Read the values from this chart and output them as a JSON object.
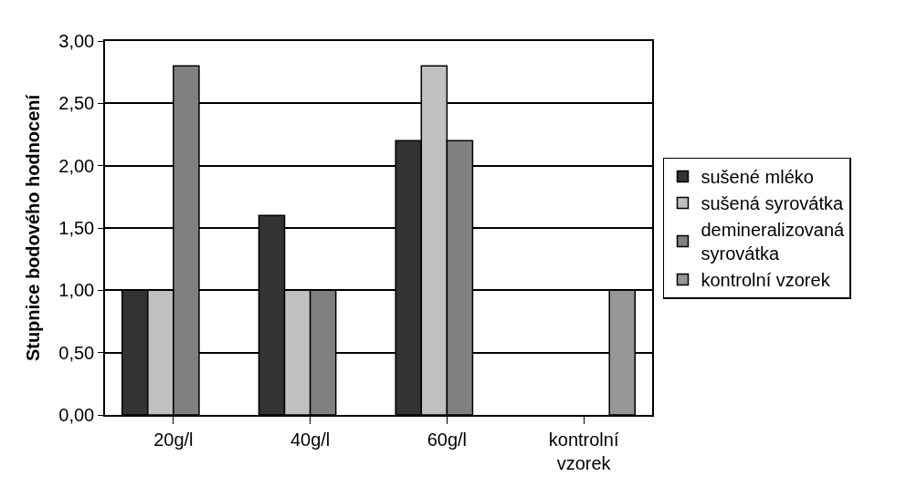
{
  "chart_data": {
    "type": "bar",
    "ylabel": "Stupnice bodového hodnocení",
    "categories": [
      "20g/l",
      "40g/l",
      "60g/l",
      "kontrolní vzorek"
    ],
    "series": [
      {
        "name": "sušené mléko",
        "color": "#333333",
        "values": [
          1.0,
          1.6,
          2.2,
          null
        ]
      },
      {
        "name": "sušená syrovátka",
        "color": "#c0c0c0",
        "values": [
          1.0,
          1.0,
          2.8,
          null
        ]
      },
      {
        "name": "demineralizovaná syrovátka",
        "color": "#808080",
        "values": [
          2.8,
          1.0,
          2.2,
          null
        ]
      },
      {
        "name": "kontrolní vzorek",
        "color": "#969696",
        "values": [
          null,
          null,
          null,
          1.0
        ]
      }
    ],
    "ylim": [
      0,
      3
    ],
    "yticks": [
      {
        "value": 0,
        "label": "0,00"
      },
      {
        "value": 0.5,
        "label": "0,50"
      },
      {
        "value": 1,
        "label": "1,00"
      },
      {
        "value": 1.5,
        "label": "1,50"
      },
      {
        "value": 2,
        "label": "2,00"
      },
      {
        "value": 2.5,
        "label": "2,50"
      },
      {
        "value": 3,
        "label": "3,00"
      }
    ],
    "grid": "y",
    "legend": "right"
  }
}
